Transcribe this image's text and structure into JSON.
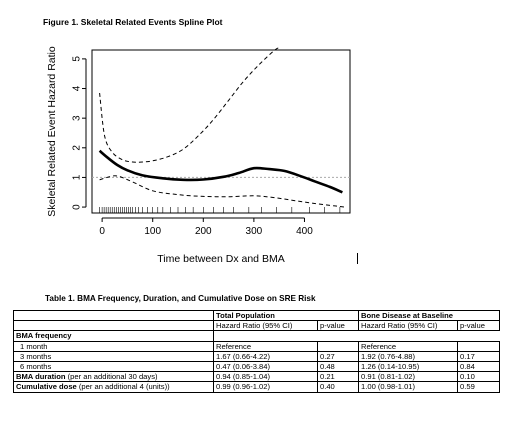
{
  "figure": {
    "title": "Figure 1. Skeletal Related Events Spline Plot"
  },
  "chart_data": {
    "type": "line",
    "title": "",
    "xlabel": "Time between Dx and BMA",
    "ylabel": "Skeletal Related Event Hazard Ratio",
    "xlim": [
      -20,
      490
    ],
    "ylim": [
      -0.2,
      5.3
    ],
    "x_ticks": [
      0,
      100,
      200,
      300,
      400
    ],
    "y_ticks": [
      0,
      1,
      2,
      3,
      4,
      5
    ],
    "reference_line": {
      "y": 1,
      "style": "dotted"
    },
    "series": [
      {
        "role": "estimate",
        "style": "solid",
        "x": [
          -5,
          10,
          30,
          50,
          80,
          120,
          160,
          200,
          240,
          270,
          300,
          330,
          360,
          390,
          420,
          450,
          475
        ],
        "y": [
          1.9,
          1.68,
          1.42,
          1.24,
          1.07,
          0.97,
          0.92,
          0.93,
          1.02,
          1.15,
          1.31,
          1.28,
          1.22,
          1.06,
          0.87,
          0.68,
          0.5
        ]
      },
      {
        "role": "upper",
        "style": "dashed",
        "x": [
          -5,
          5,
          20,
          40,
          60,
          80,
          100,
          130,
          160,
          190,
          220,
          250,
          280,
          310,
          340,
          350
        ],
        "y": [
          3.85,
          2.4,
          1.85,
          1.6,
          1.52,
          1.52,
          1.56,
          1.7,
          1.95,
          2.4,
          2.95,
          3.6,
          4.25,
          4.8,
          5.28,
          5.38
        ]
      },
      {
        "role": "lower",
        "style": "dashed",
        "x": [
          -5,
          10,
          30,
          60,
          100,
          150,
          200,
          250,
          300,
          340,
          380,
          420,
          460,
          480
        ],
        "y": [
          0.92,
          1.0,
          1.05,
          0.85,
          0.55,
          0.42,
          0.36,
          0.35,
          0.38,
          0.32,
          0.22,
          0.12,
          0.04,
          0.0
        ]
      }
    ],
    "rug_x": [
      -5,
      0,
      4,
      8,
      12,
      16,
      20,
      24,
      28,
      32,
      36,
      40,
      44,
      48,
      52,
      56,
      60,
      66,
      72,
      80,
      90,
      100,
      110,
      120,
      135,
      150,
      165,
      180,
      200,
      220,
      240,
      260,
      290,
      315,
      345,
      375,
      410,
      440,
      470
    ]
  },
  "table": {
    "title": "Table 1. BMA Frequency, Duration, and Cumulative Dose on SRE Risk",
    "groups": [
      "Total Population",
      "Bone Disease at Baseline"
    ],
    "headers": [
      "Hazard Ratio (95% CI)",
      "p-value",
      "Hazard Ratio (95% CI)",
      "p-value"
    ],
    "rows": [
      {
        "label": "BMA frequency",
        "suffix": "",
        "bold": true,
        "indent": false,
        "cells": [
          "",
          "",
          "",
          ""
        ]
      },
      {
        "label": "1 month",
        "suffix": "",
        "bold": false,
        "indent": true,
        "cells": [
          "Reference",
          "",
          "Reference",
          ""
        ]
      },
      {
        "label": "3 months",
        "suffix": "",
        "bold": false,
        "indent": true,
        "cells": [
          "1.67 (0.66-4.22)",
          "0.27",
          "1.92 (0.76-4.88)",
          "0.17"
        ]
      },
      {
        "label": "6 months",
        "suffix": "",
        "bold": false,
        "indent": true,
        "cells": [
          "0.47 (0.06-3.84)",
          "0.48",
          "1.26 (0.14-10.95)",
          "0.84"
        ]
      },
      {
        "label": "BMA duration",
        "suffix": " (per an additional 30 days)",
        "bold": true,
        "indent": false,
        "cells": [
          "0.94 (0.85-1.04)",
          "0.21",
          "0.91 (0.81-1.02)",
          "0.10"
        ]
      },
      {
        "label": "Cumulative dose",
        "suffix": " (per an additional 4 (units))",
        "bold": true,
        "indent": false,
        "cells": [
          "0.99 (0.96-1.02)",
          "0.40",
          "1.00 (0.98-1.01)",
          "0.59"
        ]
      }
    ]
  }
}
